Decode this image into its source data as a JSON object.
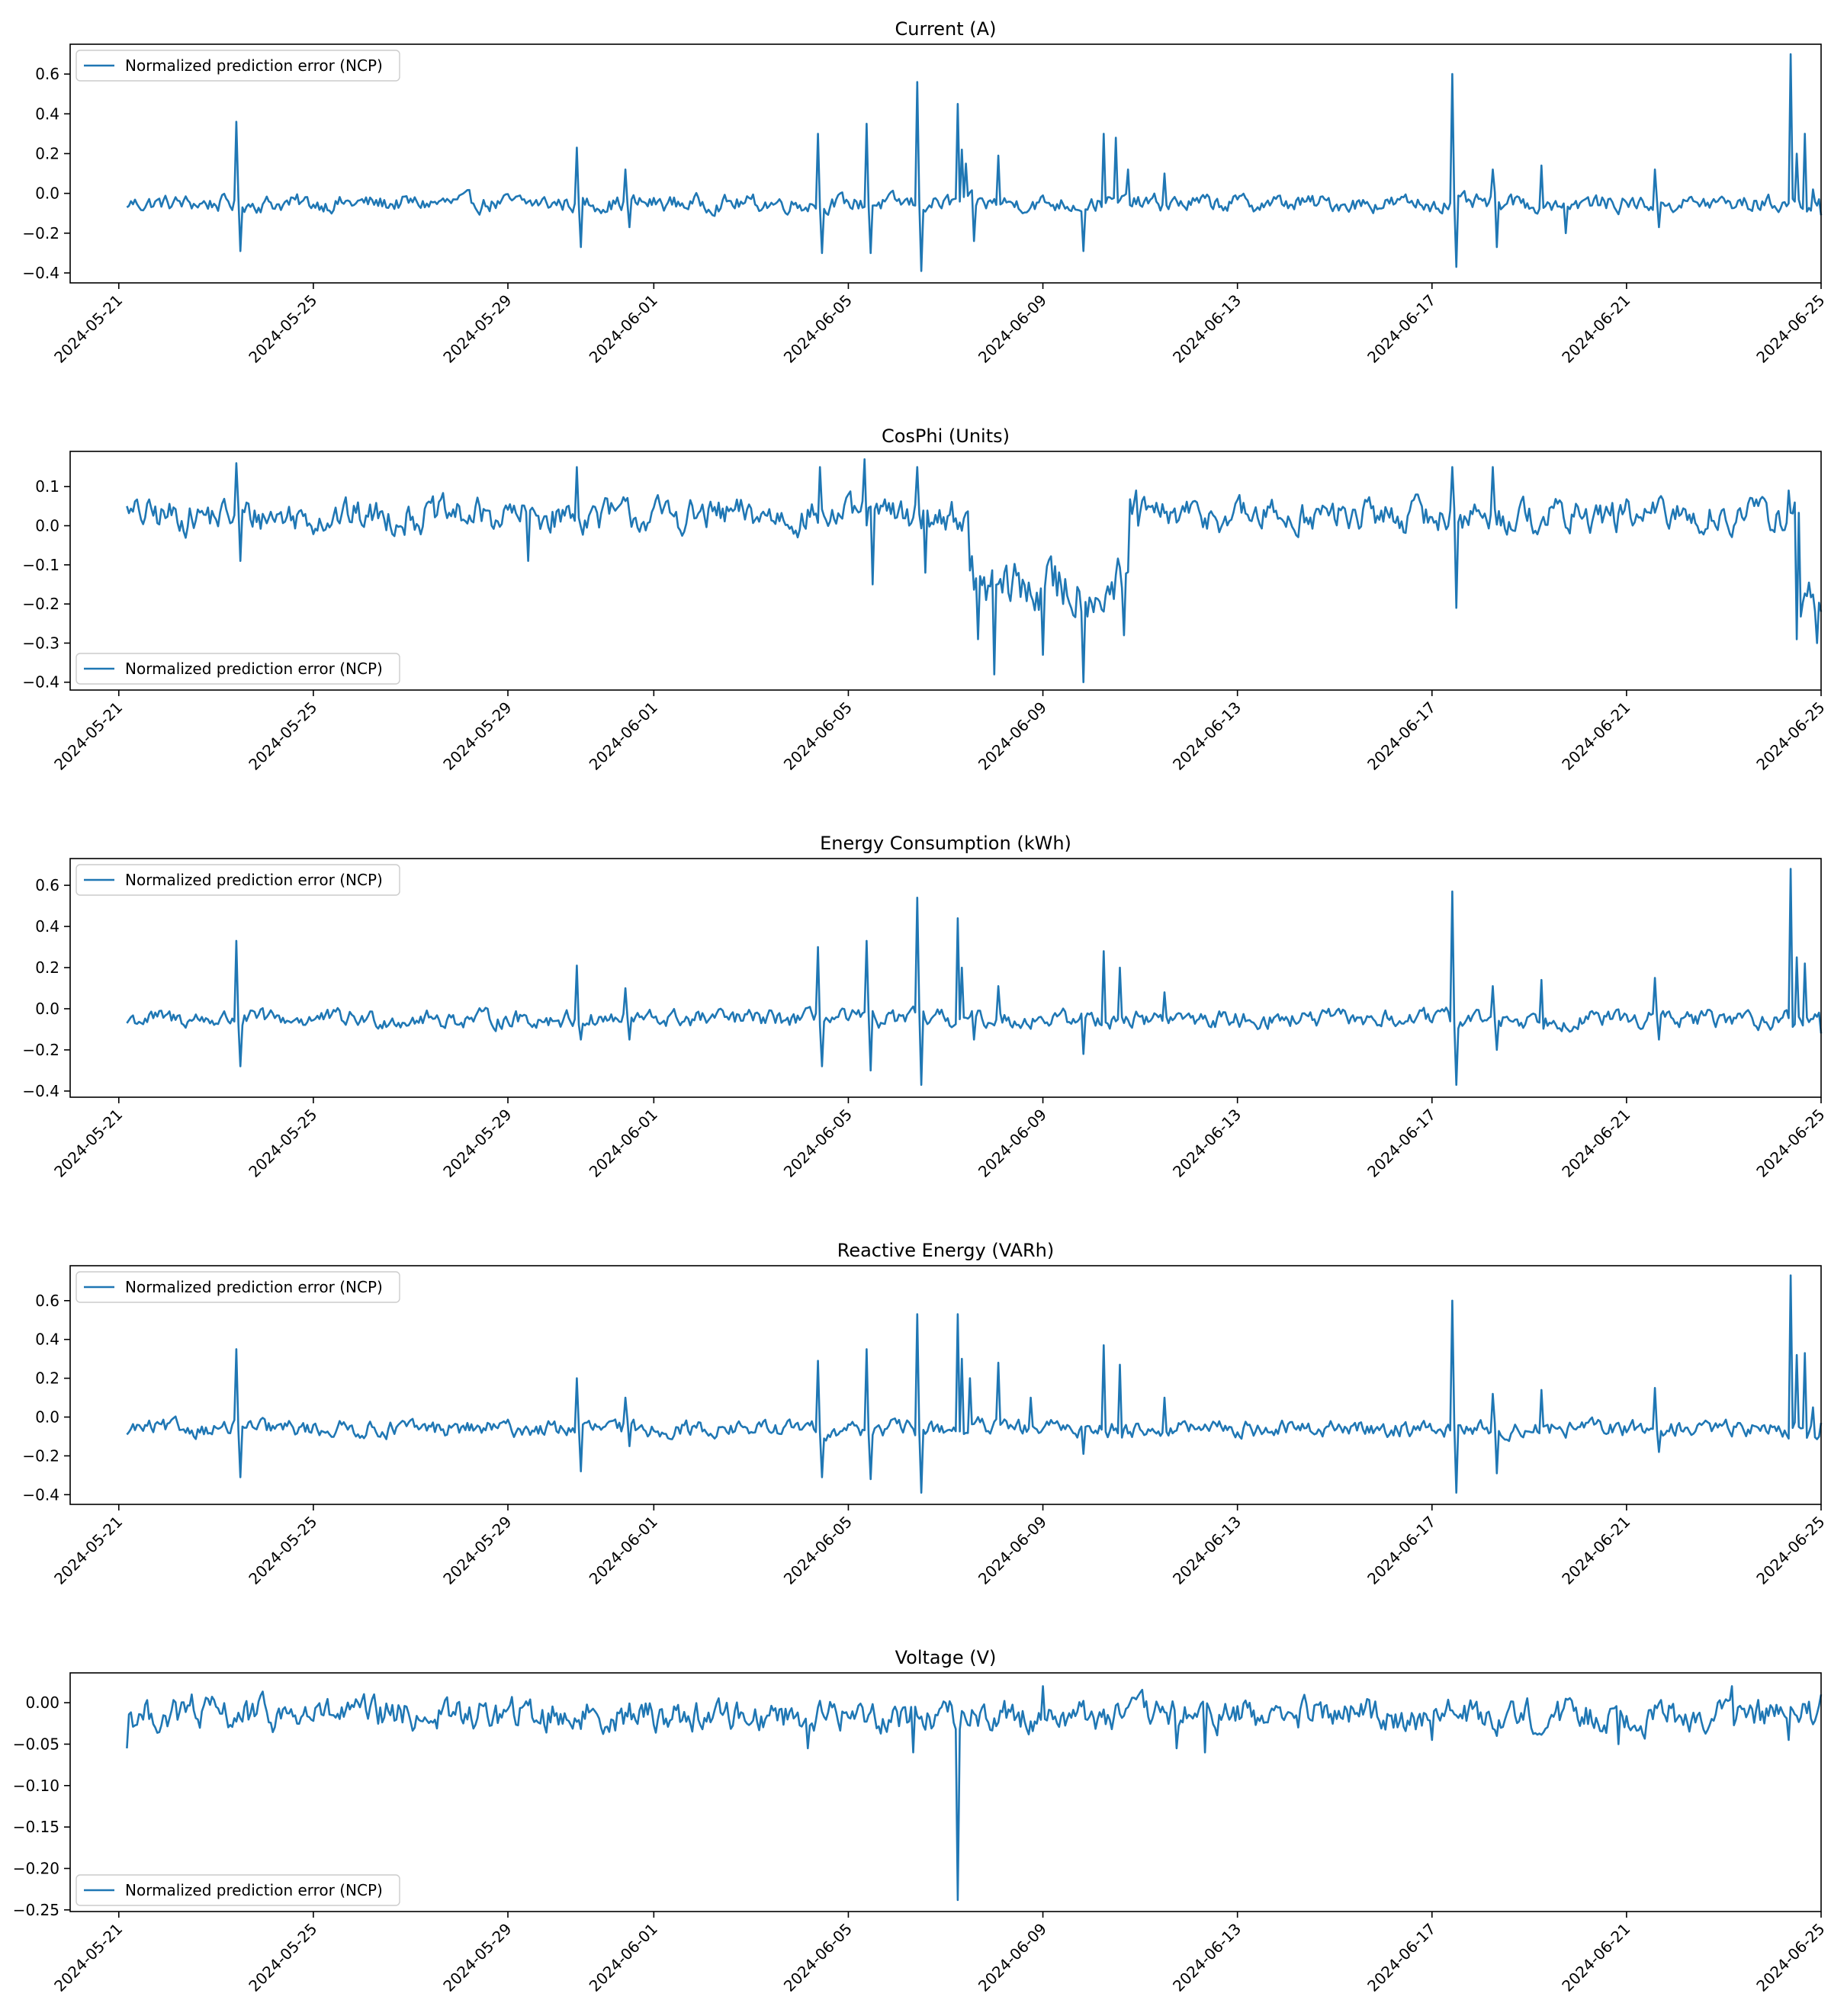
{
  "colors": {
    "series": "#1f77b4",
    "axes": "#000000",
    "legend_border": "#cccccc",
    "background": "#ffffff"
  },
  "chart_data": [
    {
      "type": "line",
      "title": "Current (A)",
      "xlabel": "",
      "ylabel": "",
      "x_range": [
        "2024-05-20",
        "2024-06-25"
      ],
      "xticks": [
        "2024-05-21",
        "2024-05-25",
        "2024-05-29",
        "2024-06-01",
        "2024-06-05",
        "2024-06-09",
        "2024-06-13",
        "2024-06-17",
        "2024-06-21",
        "2024-06-25"
      ],
      "ylim": [
        -0.45,
        0.75
      ],
      "yticks": [
        -0.4,
        -0.2,
        0.0,
        0.2,
        0.4,
        0.6
      ],
      "ytick_labels": [
        "−0.4",
        "−0.2",
        "0.0",
        "0.2",
        "0.4",
        "0.6"
      ],
      "legend": {
        "label": "Normalized prediction error (NCP)",
        "placement": "upper-left"
      },
      "series": [
        {
          "name": "Normalized prediction error (NCP)",
          "baseline": -0.05,
          "noise": 0.035,
          "start_value": -0.07,
          "end_value": -0.11,
          "events": [
            {
              "date": "2024-05-23T10:00",
              "value": 0.36
            },
            {
              "date": "2024-05-23T12:00",
              "value": -0.29
            },
            {
              "date": "2024-05-30T10:00",
              "value": 0.23
            },
            {
              "date": "2024-05-30T12:00",
              "value": -0.27
            },
            {
              "date": "2024-05-31T10:00",
              "value": 0.12
            },
            {
              "date": "2024-05-31T12:00",
              "value": -0.17
            },
            {
              "date": "2024-06-04T09:00",
              "value": 0.3
            },
            {
              "date": "2024-06-04T11:00",
              "value": -0.3
            },
            {
              "date": "2024-06-05T09:00",
              "value": 0.35
            },
            {
              "date": "2024-06-05T11:00",
              "value": -0.3
            },
            {
              "date": "2024-06-06T10:00",
              "value": 0.56
            },
            {
              "date": "2024-06-06T12:00",
              "value": -0.39
            },
            {
              "date": "2024-06-07T06:00",
              "value": 0.45
            },
            {
              "date": "2024-06-07T08:00",
              "value": 0.22
            },
            {
              "date": "2024-06-07T10:00",
              "value": 0.15
            },
            {
              "date": "2024-06-07T14:00",
              "value": -0.24
            },
            {
              "date": "2024-06-08T02:00",
              "value": 0.19
            },
            {
              "date": "2024-06-09T20:00",
              "value": -0.29
            },
            {
              "date": "2024-06-10T06:00",
              "value": 0.3
            },
            {
              "date": "2024-06-10T12:00",
              "value": 0.28
            },
            {
              "date": "2024-06-10T18:00",
              "value": 0.12
            },
            {
              "date": "2024-06-11T12:00",
              "value": 0.1
            },
            {
              "date": "2024-06-17T10:00",
              "value": 0.6
            },
            {
              "date": "2024-06-17T12:00",
              "value": -0.37
            },
            {
              "date": "2024-06-18T06:00",
              "value": 0.12
            },
            {
              "date": "2024-06-18T08:00",
              "value": -0.27
            },
            {
              "date": "2024-06-19T06:00",
              "value": 0.14
            },
            {
              "date": "2024-06-19T18:00",
              "value": -0.2
            },
            {
              "date": "2024-06-21T14:00",
              "value": 0.12
            },
            {
              "date": "2024-06-21T16:00",
              "value": -0.17
            },
            {
              "date": "2024-06-24T09:00",
              "value": 0.7
            },
            {
              "date": "2024-06-24T12:00",
              "value": 0.2
            },
            {
              "date": "2024-06-24T16:00",
              "value": 0.3
            },
            {
              "date": "2024-06-24T20:00",
              "value": 0.02
            }
          ]
        }
      ]
    },
    {
      "type": "line",
      "title": "CosPhi (Units)",
      "xlabel": "",
      "ylabel": "",
      "x_range": [
        "2024-05-20",
        "2024-06-25"
      ],
      "xticks": [
        "2024-05-21",
        "2024-05-25",
        "2024-05-29",
        "2024-06-01",
        "2024-06-05",
        "2024-06-09",
        "2024-06-13",
        "2024-06-17",
        "2024-06-21",
        "2024-06-25"
      ],
      "ylim": [
        -0.42,
        0.19
      ],
      "yticks": [
        -0.4,
        -0.3,
        -0.2,
        -0.1,
        0.0,
        0.1
      ],
      "ytick_labels": [
        "−0.4",
        "−0.3",
        "−0.2",
        "−0.1",
        "0.0",
        "0.1"
      ],
      "legend": {
        "label": "Normalized prediction error (NCP)",
        "placement": "lower-left"
      },
      "series": [
        {
          "name": "Normalized prediction error (NCP)",
          "baseline": 0.025,
          "noise": 0.035,
          "start_value": 0.05,
          "end_value": -0.22,
          "segments": [
            {
              "from": "2024-06-07T12:00",
              "to": "2024-06-10T18:00",
              "baseline": -0.16,
              "noise": 0.06
            },
            {
              "from": "2024-06-24T14:00",
              "to": "2024-06-25T00:00",
              "baseline": -0.2,
              "noise": 0.06
            }
          ],
          "events": [
            {
              "date": "2024-05-23T10:00",
              "value": 0.16
            },
            {
              "date": "2024-05-23T12:00",
              "value": -0.09
            },
            {
              "date": "2024-05-30T10:00",
              "value": 0.15
            },
            {
              "date": "2024-05-29T10:00",
              "value": -0.09
            },
            {
              "date": "2024-06-04T10:00",
              "value": 0.15
            },
            {
              "date": "2024-06-05T08:00",
              "value": 0.17
            },
            {
              "date": "2024-06-05T12:00",
              "value": -0.15
            },
            {
              "date": "2024-06-06T10:00",
              "value": 0.15
            },
            {
              "date": "2024-06-06T14:00",
              "value": -0.12
            },
            {
              "date": "2024-06-07T16:00",
              "value": -0.29
            },
            {
              "date": "2024-06-08T00:00",
              "value": -0.38
            },
            {
              "date": "2024-06-09T00:00",
              "value": -0.33
            },
            {
              "date": "2024-06-09T20:00",
              "value": -0.4
            },
            {
              "date": "2024-06-10T16:00",
              "value": -0.28
            },
            {
              "date": "2024-06-10T22:00",
              "value": 0.09
            },
            {
              "date": "2024-06-17T10:00",
              "value": 0.15
            },
            {
              "date": "2024-06-17T12:00",
              "value": -0.21
            },
            {
              "date": "2024-06-18T06:00",
              "value": 0.15
            },
            {
              "date": "2024-06-24T08:00",
              "value": 0.09
            },
            {
              "date": "2024-06-24T12:00",
              "value": -0.29
            },
            {
              "date": "2024-06-24T22:00",
              "value": -0.3
            }
          ]
        }
      ]
    },
    {
      "type": "line",
      "title": "Energy Consumption (kWh)",
      "xlabel": "",
      "ylabel": "",
      "x_range": [
        "2024-05-20",
        "2024-06-25"
      ],
      "xticks": [
        "2024-05-21",
        "2024-05-25",
        "2024-05-29",
        "2024-06-01",
        "2024-06-05",
        "2024-06-09",
        "2024-06-13",
        "2024-06-17",
        "2024-06-21",
        "2024-06-25"
      ],
      "ylim": [
        -0.43,
        0.73
      ],
      "yticks": [
        -0.4,
        -0.2,
        0.0,
        0.2,
        0.4,
        0.6
      ],
      "ytick_labels": [
        "−0.4",
        "−0.2",
        "0.0",
        "0.2",
        "0.4",
        "0.6"
      ],
      "legend": {
        "label": "Normalized prediction error (NCP)",
        "placement": "upper-left"
      },
      "series": [
        {
          "name": "Normalized prediction error (NCP)",
          "baseline": -0.05,
          "noise": 0.035,
          "start_value": -0.07,
          "end_value": -0.12,
          "events": [
            {
              "date": "2024-05-23T10:00",
              "value": 0.33
            },
            {
              "date": "2024-05-23T12:00",
              "value": -0.28
            },
            {
              "date": "2024-05-30T10:00",
              "value": 0.21
            },
            {
              "date": "2024-05-30T12:00",
              "value": -0.15
            },
            {
              "date": "2024-05-31T10:00",
              "value": 0.1
            },
            {
              "date": "2024-05-31T12:00",
              "value": -0.15
            },
            {
              "date": "2024-06-04T09:00",
              "value": 0.3
            },
            {
              "date": "2024-06-04T11:00",
              "value": -0.28
            },
            {
              "date": "2024-06-05T09:00",
              "value": 0.33
            },
            {
              "date": "2024-06-05T11:00",
              "value": -0.3
            },
            {
              "date": "2024-06-06T10:00",
              "value": 0.54
            },
            {
              "date": "2024-06-06T12:00",
              "value": -0.37
            },
            {
              "date": "2024-06-07T06:00",
              "value": 0.44
            },
            {
              "date": "2024-06-07T08:00",
              "value": 0.2
            },
            {
              "date": "2024-06-07T14:00",
              "value": -0.15
            },
            {
              "date": "2024-06-08T02:00",
              "value": 0.11
            },
            {
              "date": "2024-06-09T20:00",
              "value": -0.22
            },
            {
              "date": "2024-06-10T06:00",
              "value": 0.28
            },
            {
              "date": "2024-06-10T14:00",
              "value": 0.2
            },
            {
              "date": "2024-06-11T12:00",
              "value": 0.08
            },
            {
              "date": "2024-06-17T10:00",
              "value": 0.57
            },
            {
              "date": "2024-06-17T12:00",
              "value": -0.37
            },
            {
              "date": "2024-06-18T06:00",
              "value": 0.11
            },
            {
              "date": "2024-06-18T08:00",
              "value": -0.2
            },
            {
              "date": "2024-06-19T06:00",
              "value": 0.14
            },
            {
              "date": "2024-06-21T14:00",
              "value": 0.15
            },
            {
              "date": "2024-06-21T16:00",
              "value": -0.15
            },
            {
              "date": "2024-06-24T09:00",
              "value": 0.68
            },
            {
              "date": "2024-06-24T12:00",
              "value": 0.25
            },
            {
              "date": "2024-06-24T16:00",
              "value": 0.22
            },
            {
              "date": "2024-06-24T20:00",
              "value": -0.05
            }
          ]
        }
      ]
    },
    {
      "type": "line",
      "title": "Reactive Energy (VARh)",
      "xlabel": "",
      "ylabel": "",
      "x_range": [
        "2024-05-20",
        "2024-06-25"
      ],
      "xticks": [
        "2024-05-21",
        "2024-05-25",
        "2024-05-29",
        "2024-06-01",
        "2024-06-05",
        "2024-06-09",
        "2024-06-13",
        "2024-06-17",
        "2024-06-21",
        "2024-06-25"
      ],
      "ylim": [
        -0.45,
        0.78
      ],
      "yticks": [
        -0.4,
        -0.2,
        0.0,
        0.2,
        0.4,
        0.6
      ],
      "ytick_labels": [
        "−0.4",
        "−0.2",
        "0.0",
        "0.2",
        "0.4",
        "0.6"
      ],
      "legend": {
        "label": "Normalized prediction error (NCP)",
        "placement": "upper-left"
      },
      "series": [
        {
          "name": "Normalized prediction error (NCP)",
          "baseline": -0.06,
          "noise": 0.035,
          "start_value": -0.09,
          "end_value": -0.03,
          "events": [
            {
              "date": "2024-05-23T10:00",
              "value": 0.35
            },
            {
              "date": "2024-05-23T12:00",
              "value": -0.31
            },
            {
              "date": "2024-05-30T10:00",
              "value": 0.2
            },
            {
              "date": "2024-05-30T12:00",
              "value": -0.28
            },
            {
              "date": "2024-05-31T10:00",
              "value": 0.1
            },
            {
              "date": "2024-05-31T12:00",
              "value": -0.15
            },
            {
              "date": "2024-06-04T09:00",
              "value": 0.29
            },
            {
              "date": "2024-06-04T11:00",
              "value": -0.31
            },
            {
              "date": "2024-06-05T09:00",
              "value": 0.35
            },
            {
              "date": "2024-06-05T11:00",
              "value": -0.32
            },
            {
              "date": "2024-06-06T10:00",
              "value": 0.53
            },
            {
              "date": "2024-06-06T12:00",
              "value": -0.39
            },
            {
              "date": "2024-06-07T06:00",
              "value": 0.53
            },
            {
              "date": "2024-06-07T08:00",
              "value": 0.3
            },
            {
              "date": "2024-06-07T12:00",
              "value": 0.2
            },
            {
              "date": "2024-06-07T16:00",
              "value": 0.0
            },
            {
              "date": "2024-06-08T02:00",
              "value": 0.28
            },
            {
              "date": "2024-06-08T18:00",
              "value": 0.1
            },
            {
              "date": "2024-06-09T20:00",
              "value": -0.19
            },
            {
              "date": "2024-06-10T06:00",
              "value": 0.37
            },
            {
              "date": "2024-06-10T14:00",
              "value": 0.27
            },
            {
              "date": "2024-06-11T12:00",
              "value": 0.1
            },
            {
              "date": "2024-06-17T10:00",
              "value": 0.6
            },
            {
              "date": "2024-06-17T12:00",
              "value": -0.39
            },
            {
              "date": "2024-06-18T06:00",
              "value": 0.12
            },
            {
              "date": "2024-06-18T08:00",
              "value": -0.29
            },
            {
              "date": "2024-06-19T06:00",
              "value": 0.14
            },
            {
              "date": "2024-06-21T14:00",
              "value": 0.15
            },
            {
              "date": "2024-06-21T16:00",
              "value": -0.18
            },
            {
              "date": "2024-06-24T09:00",
              "value": 0.73
            },
            {
              "date": "2024-06-24T12:00",
              "value": 0.32
            },
            {
              "date": "2024-06-24T16:00",
              "value": 0.33
            },
            {
              "date": "2024-06-24T20:00",
              "value": 0.05
            }
          ]
        }
      ]
    },
    {
      "type": "line",
      "title": "Voltage (V)",
      "xlabel": "",
      "ylabel": "",
      "x_range": [
        "2024-05-20",
        "2024-06-25"
      ],
      "xticks": [
        "2024-05-21",
        "2024-05-25",
        "2024-05-29",
        "2024-06-01",
        "2024-06-05",
        "2024-06-09",
        "2024-06-13",
        "2024-06-17",
        "2024-06-21",
        "2024-06-25"
      ],
      "ylim": [
        -0.252,
        0.036
      ],
      "yticks": [
        -0.25,
        -0.2,
        -0.15,
        -0.1,
        -0.05,
        0.0
      ],
      "ytick_labels": [
        "−0.25",
        "−0.20",
        "−0.15",
        "−0.10",
        "−0.05",
        "0.00"
      ],
      "legend": {
        "label": "Normalized prediction error (NCP)",
        "placement": "lower-left"
      },
      "series": [
        {
          "name": "Normalized prediction error (NCP)",
          "baseline": -0.015,
          "noise": 0.016,
          "start_value": -0.055,
          "end_value": 0.01,
          "events": [
            {
              "date": "2024-05-21T18:00",
              "value": -0.03
            },
            {
              "date": "2024-05-22T12:00",
              "value": 0.01
            },
            {
              "date": "2024-06-04T04:00",
              "value": -0.055
            },
            {
              "date": "2024-06-06T08:00",
              "value": -0.06
            },
            {
              "date": "2024-06-07T06:00",
              "value": -0.238
            },
            {
              "date": "2024-06-07T08:00",
              "value": -0.01
            },
            {
              "date": "2024-06-09T00:00",
              "value": 0.02
            },
            {
              "date": "2024-06-11T18:00",
              "value": -0.055
            },
            {
              "date": "2024-06-12T08:00",
              "value": -0.06
            },
            {
              "date": "2024-06-17T00:00",
              "value": -0.045
            },
            {
              "date": "2024-06-20T20:00",
              "value": -0.05
            },
            {
              "date": "2024-06-23T04:00",
              "value": 0.02
            },
            {
              "date": "2024-06-24T08:00",
              "value": -0.045
            }
          ]
        }
      ]
    }
  ]
}
